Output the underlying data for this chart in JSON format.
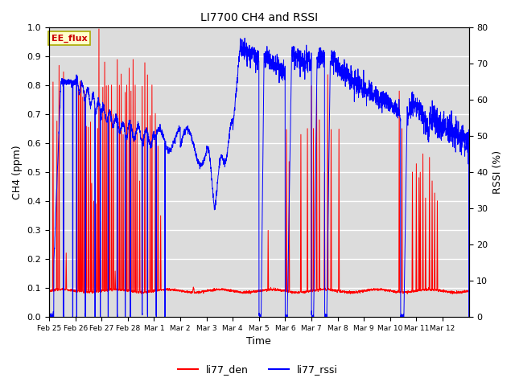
{
  "title": "LI7700 CH4 and RSSI",
  "xlabel": "Time",
  "ylabel_left": "CH4 (ppm)",
  "ylabel_right": "RSSI (%)",
  "ylim_left": [
    0.0,
    1.0
  ],
  "ylim_right": [
    0,
    80
  ],
  "yticks_left": [
    0.0,
    0.1,
    0.2,
    0.3,
    0.4,
    0.5,
    0.6,
    0.7,
    0.8,
    0.9,
    1.0
  ],
  "yticks_right": [
    0,
    10,
    20,
    30,
    40,
    50,
    60,
    70,
    80
  ],
  "color_red": "#ff0000",
  "color_blue": "#0000ff",
  "bg_color": "#dcdcdc",
  "annotation_text": "EE_flux",
  "annotation_color": "#cc0000",
  "annotation_bg": "#ffffcc",
  "legend_labels": [
    "li77_den",
    "li77_rssi"
  ],
  "xtick_labels": [
    "Feb 25",
    "Feb 26",
    "Feb 27",
    "Feb 28",
    "Mar 1",
    "Mar 2",
    "Mar 3",
    "Mar 4",
    "Mar 5",
    "Mar 6",
    "Mar 7",
    "Mar 8",
    "Mar 9",
    "Mar 10",
    "Mar 11",
    "Mar 12"
  ],
  "n_points": 3000
}
